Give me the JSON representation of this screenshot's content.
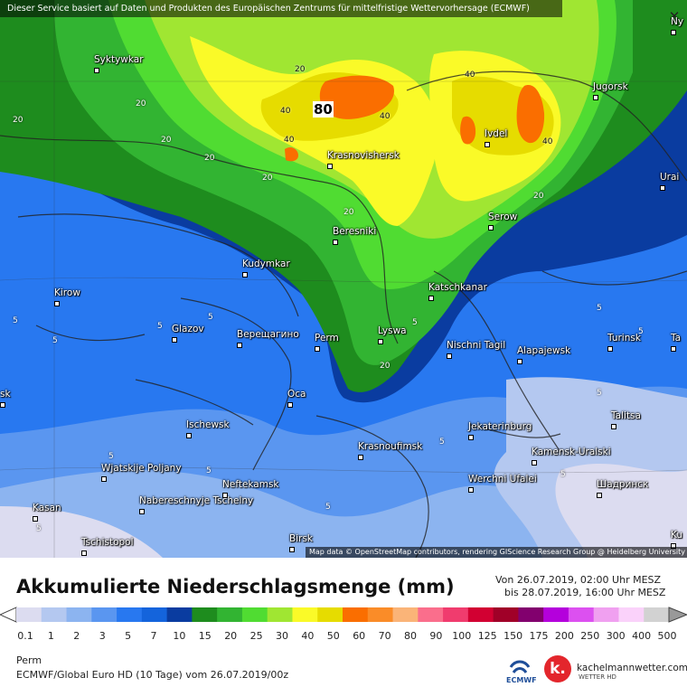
{
  "banner": "Dieser Service basiert auf Daten und Produkten des Europäischen Zentrums für mittelfristige Wettervorhersage (ECMWF)",
  "attribution": "Map data © OpenStreetMap contributors, rendering GIScience Research Group @ Heidelberg University",
  "max_value": "80",
  "cities": [
    {
      "name": "Syktywkar"
    },
    {
      "name": "Jugorsk"
    },
    {
      "name": "Ivdel"
    },
    {
      "name": "Krasnovishersk"
    },
    {
      "name": "Urai"
    },
    {
      "name": "Serow"
    },
    {
      "name": "Beresniki"
    },
    {
      "name": "Kudymkar"
    },
    {
      "name": "Katschkanar"
    },
    {
      "name": "Kirow"
    },
    {
      "name": "Glazov"
    },
    {
      "name": "Верещагино"
    },
    {
      "name": "Perm"
    },
    {
      "name": "Lyswa"
    },
    {
      "name": "Nischni Tagil"
    },
    {
      "name": "Alapajewsk"
    },
    {
      "name": "Turinsk"
    },
    {
      "name": "Ta"
    },
    {
      "name": "Oca"
    },
    {
      "name": "Talitsa"
    },
    {
      "name": "Ischewsk"
    },
    {
      "name": "Jekaterinburg"
    },
    {
      "name": "Krasnoufimsk"
    },
    {
      "name": "Kamensk-Uralski"
    },
    {
      "name": "Wjatskije Poljany"
    },
    {
      "name": "Neftekamsk"
    },
    {
      "name": "Werchni Ufalei"
    },
    {
      "name": "Шадринск"
    },
    {
      "name": "Nabereschnyje Tschelny"
    },
    {
      "name": "Kasan"
    },
    {
      "name": "Tschistopol"
    },
    {
      "name": "Birsk"
    },
    {
      "name": "Ny"
    },
    {
      "name": "sk"
    },
    {
      "name": "Ku"
    }
  ],
  "isolines": [
    "20",
    "40",
    "40",
    "40",
    "40",
    "40",
    "20",
    "20",
    "20",
    "20",
    "20",
    "20",
    "20",
    "20",
    "5",
    "5",
    "5",
    "5",
    "5",
    "5",
    "5",
    "5",
    "5",
    "5",
    "5",
    "5",
    "5",
    "5"
  ],
  "legend": {
    "title": "Akkumulierte Niederschlagsmenge (mm)",
    "period_from": "Von 26.07.2019, 02:00 Uhr MESZ",
    "period_to": "bis 28.07.2019, 16:00 Uhr MESZ",
    "ticks": [
      "0.1",
      "1",
      "2",
      "3",
      "5",
      "7",
      "10",
      "15",
      "20",
      "25",
      "30",
      "40",
      "50",
      "60",
      "70",
      "80",
      "90",
      "100",
      "125",
      "150",
      "175",
      "200",
      "250",
      "300",
      "400",
      "500"
    ],
    "colors": [
      "#dcdcf0",
      "#b4c8f0",
      "#8cb4f0",
      "#5a96f0",
      "#2878f0",
      "#1464dc",
      "#0a3ca0",
      "#1e8c1e",
      "#32b432",
      "#50dc32",
      "#a0e632",
      "#fafa28",
      "#e6dc00",
      "#fa6e00",
      "#fa8c28",
      "#fab478",
      "#fa6e8c",
      "#f03c6e",
      "#d20032",
      "#a00028",
      "#82006e",
      "#b400dc",
      "#dc50f0",
      "#f0a0f0",
      "#fad2fa",
      "#d2d2d2"
    ]
  },
  "location": "Perm",
  "model": "ECMWF/Global Euro HD (10 Tage) vom 26.07.2019/00z",
  "logos": {
    "ecmwf": "ECMWF",
    "kachelmann": "kachelmannwetter.com",
    "kachelmann_sub": "WETTER HD"
  }
}
